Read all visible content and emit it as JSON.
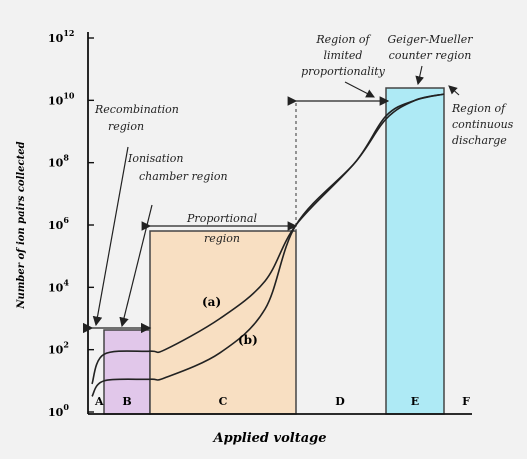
{
  "chart_data": {
    "type": "line",
    "xlabel": "Applied voltage",
    "ylabel": "Number of ion pairs collected",
    "y_scale": "log",
    "yticks": [
      {
        "base": "10",
        "exp": "0",
        "value": 1
      },
      {
        "base": "10",
        "exp": "2",
        "value": 100
      },
      {
        "base": "10",
        "exp": "4",
        "value": 10000
      },
      {
        "base": "10",
        "exp": "6",
        "value": 1000000
      },
      {
        "base": "10",
        "exp": "8",
        "value": 100000000
      },
      {
        "base": "10",
        "exp": "10",
        "value": 10000000000
      },
      {
        "base": "10",
        "exp": "12",
        "value": 1000000000000
      }
    ],
    "ylim": [
      1,
      1000000000000
    ],
    "grid": false,
    "regions": [
      {
        "letter": "A",
        "color": ""
      },
      {
        "letter": "B",
        "color": "#e1c7ea"
      },
      {
        "letter": "C",
        "color": "#f8dfc2"
      },
      {
        "letter": "D",
        "color": ""
      },
      {
        "letter": "E",
        "color": "#aeeaf5"
      },
      {
        "letter": "F",
        "color": ""
      }
    ],
    "series": [
      {
        "name": "(a)",
        "approx_log10_values": [
          0.9,
          1.85,
          1.95,
          2.0,
          3.0,
          4.2,
          6.0,
          8.0,
          9.5,
          10.0,
          10.2
        ]
      },
      {
        "name": "(b)",
        "approx_log10_values": [
          0.5,
          1.0,
          1.05,
          1.1,
          1.9,
          3.3,
          6.0,
          8.0,
          9.4,
          10.0,
          10.2
        ]
      }
    ],
    "annotations": {
      "recombination": "Recombination region",
      "ionisation": "Ionisation chamber region",
      "proportional": "Proportional region",
      "limited": "Region of limited proportionality",
      "geiger": "Geiger-Mueller counter region",
      "continuous": "Region of continuous discharge"
    }
  }
}
